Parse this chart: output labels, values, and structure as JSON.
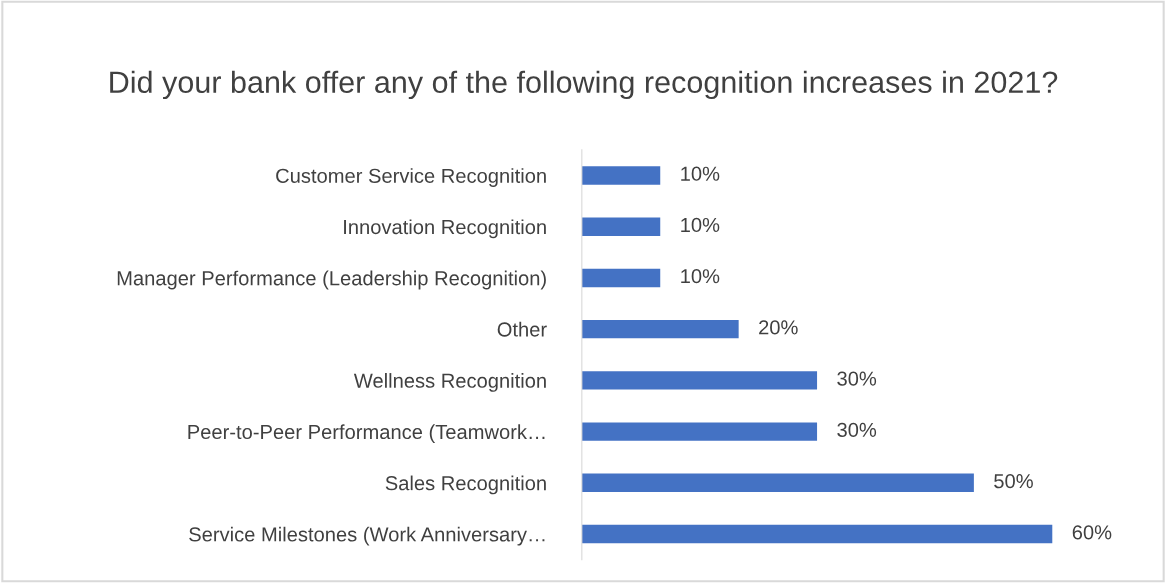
{
  "chart_data": {
    "type": "bar",
    "orientation": "horizontal",
    "title": "Did your bank offer any of the following recognition increases in 2021?",
    "categories": [
      "Customer Service Recognition",
      "Innovation Recognition",
      "Manager Performance (Leadership Recognition)",
      "Other",
      "Wellness Recognition",
      "Peer-to-Peer Performance (Teamwork…",
      "Sales Recognition",
      "Service Milestones (Work Anniversary…"
    ],
    "values": [
      10,
      10,
      10,
      20,
      30,
      30,
      50,
      60
    ],
    "value_labels": [
      "10%",
      "10%",
      "10%",
      "20%",
      "30%",
      "30%",
      "50%",
      "60%"
    ],
    "color": "#4472c4",
    "grid": false,
    "legend": false
  }
}
